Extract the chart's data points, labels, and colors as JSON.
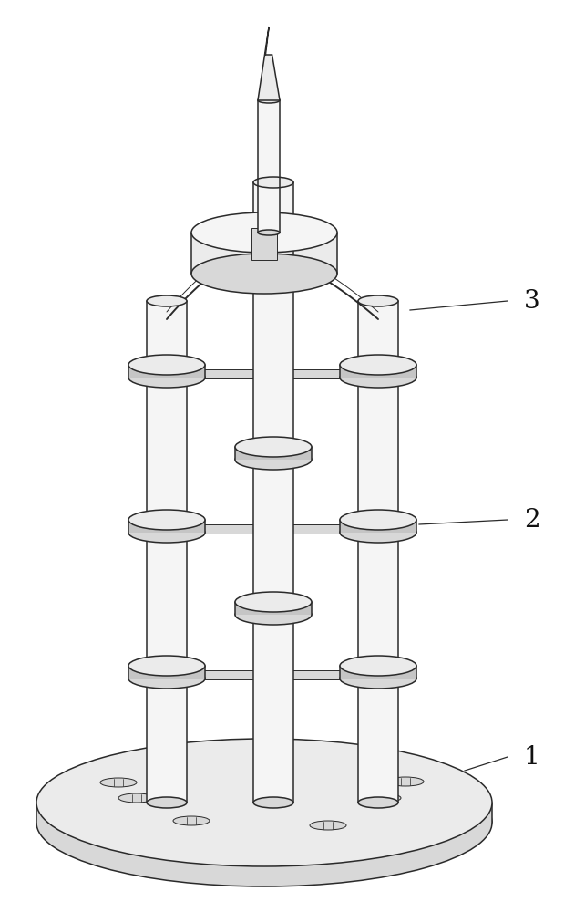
{
  "bg": "#ffffff",
  "lc": "#2a2a2a",
  "fc_white": "#f5f5f5",
  "fc_light": "#ebebeb",
  "fc_mid": "#d8d8d8",
  "fc_dark": "#c5c5c5",
  "fc_shadow": "#bbbbbb",
  "lw_main": 1.1,
  "lw_thin": 0.7,
  "label_fs": 20,
  "figsize": [
    6.42,
    10.0
  ],
  "dpi": 100
}
